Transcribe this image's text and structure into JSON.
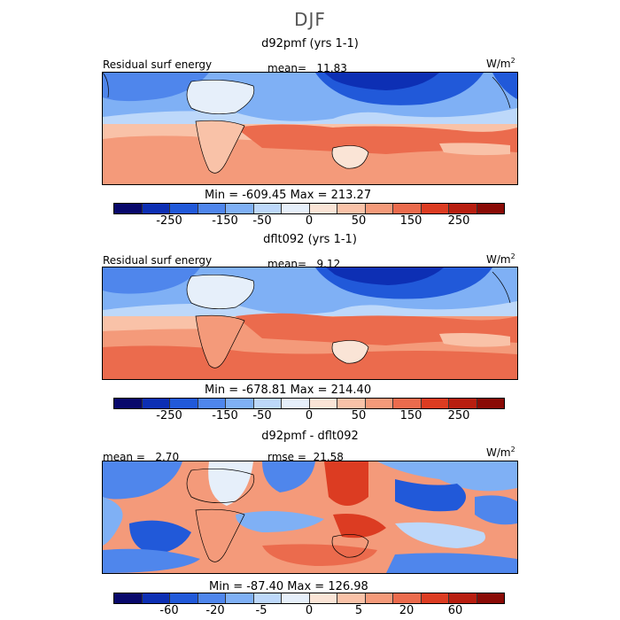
{
  "figure_title": "DJF",
  "units": "W/m",
  "units_sup": "2",
  "panel_label": "Residual surf energy",
  "colorbar_colors": [
    "#08086b",
    "#0d2fb4",
    "#2159d9",
    "#4f86ec",
    "#7fb0f5",
    "#bdd8fa",
    "#e6effa",
    "#fae4d6",
    "#f9c2a8",
    "#f49a7a",
    "#eb6b4d",
    "#dc3c22",
    "#b81e10",
    "#8a0b06"
  ],
  "chart_data": [
    {
      "type": "heatmap",
      "title": "d92pmf (yrs 1-1)",
      "variable": "Residual surf energy",
      "mean_label": "mean=",
      "mean": "11.83",
      "min_label": "Min =",
      "min": "-609.45",
      "max_label": "Max =",
      "max": "213.27",
      "colorbar_ticks": [
        "-250",
        "-150",
        "-50",
        "0",
        "50",
        "150",
        "250"
      ],
      "units": "W/m2"
    },
    {
      "type": "heatmap",
      "title": "dflt092 (yrs 1-1)",
      "variable": "Residual surf energy",
      "mean_label": "mean=",
      "mean": "9.12",
      "min_label": "Min =",
      "min": "-678.81",
      "max_label": "Max =",
      "max": "214.40",
      "colorbar_ticks": [
        "-250",
        "-150",
        "-50",
        "0",
        "50",
        "150",
        "250"
      ],
      "units": "W/m2"
    },
    {
      "type": "heatmap",
      "title": "d92pmf - dflt092",
      "mean_label": "mean =",
      "mean": "2.70",
      "rmse_label": "rmse =",
      "rmse": "21.58",
      "min_label": "Min =",
      "min": "-87.40",
      "max_label": "Max =",
      "max": "126.98",
      "colorbar_ticks": [
        "-60",
        "-20",
        "-5",
        "0",
        "5",
        "20",
        "60"
      ],
      "units": "W/m2"
    }
  ]
}
